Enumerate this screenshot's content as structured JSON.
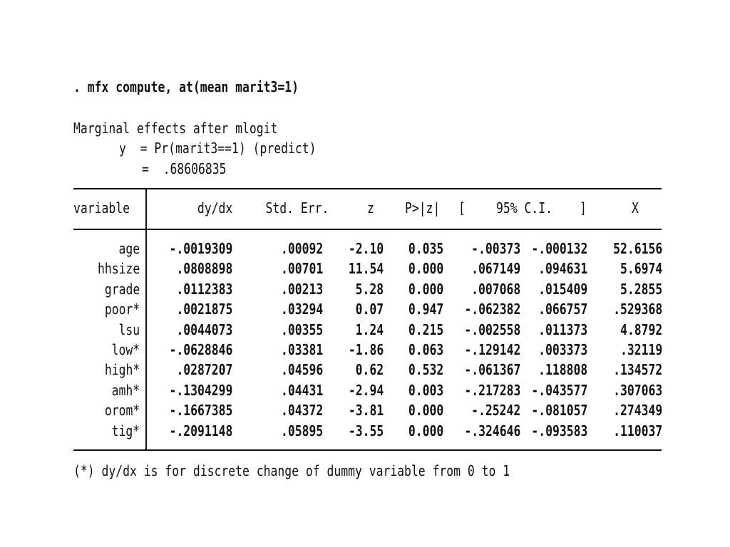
{
  "command": ". mfx compute, at(mean marit3=1)",
  "header": {
    "line1": "Marginal effects after mlogit",
    "line2": "y  = Pr(marit3==1) (predict)",
    "line3": "=  .68606835"
  },
  "table": {
    "columns": [
      "variable",
      "dy/dx",
      "Std. Err.",
      "z",
      "P>|z|",
      "[",
      "95% C.I.",
      "]",
      "X"
    ],
    "rows": [
      [
        "age",
        "-.0019309",
        ".00092",
        "-2.10",
        "0.035",
        "-.00373",
        "-.000132",
        "52.6156"
      ],
      [
        "hhsize",
        ".0808898",
        ".00701",
        "11.54",
        "0.000",
        ".067149",
        ".094631",
        "5.6974"
      ],
      [
        "grade",
        ".0112383",
        ".00213",
        "5.28",
        "0.000",
        ".007068",
        ".015409",
        "5.2855"
      ],
      [
        "poor*",
        ".0021875",
        ".03294",
        "0.07",
        "0.947",
        "-.062382",
        ".066757",
        ".529368"
      ],
      [
        "lsu",
        ".0044073",
        ".00355",
        "1.24",
        "0.215",
        "-.002558",
        ".011373",
        "4.8792"
      ],
      [
        "low*",
        "-.0628846",
        ".03381",
        "-1.86",
        "0.063",
        "-.129142",
        ".003373",
        ".32119"
      ],
      [
        "high*",
        ".0287207",
        ".04596",
        "0.62",
        "0.532",
        "-.061367",
        ".118808",
        ".134572"
      ],
      [
        "amh*",
        "-.1304299",
        ".04431",
        "-2.94",
        "0.003",
        "-.217283",
        "-.043577",
        ".307063"
      ],
      [
        "orom*",
        "-.1667385",
        ".04372",
        "-3.81",
        "0.000",
        "-.25242",
        "-.081057",
        ".274349"
      ],
      [
        "tig*",
        "-.2091148",
        ".05895",
        "-3.55",
        "0.000",
        "-.324646",
        "-.093583",
        ".110037"
      ]
    ]
  },
  "footnote": "(*) dy/dx is for discrete change of dummy variable from 0 to 1"
}
